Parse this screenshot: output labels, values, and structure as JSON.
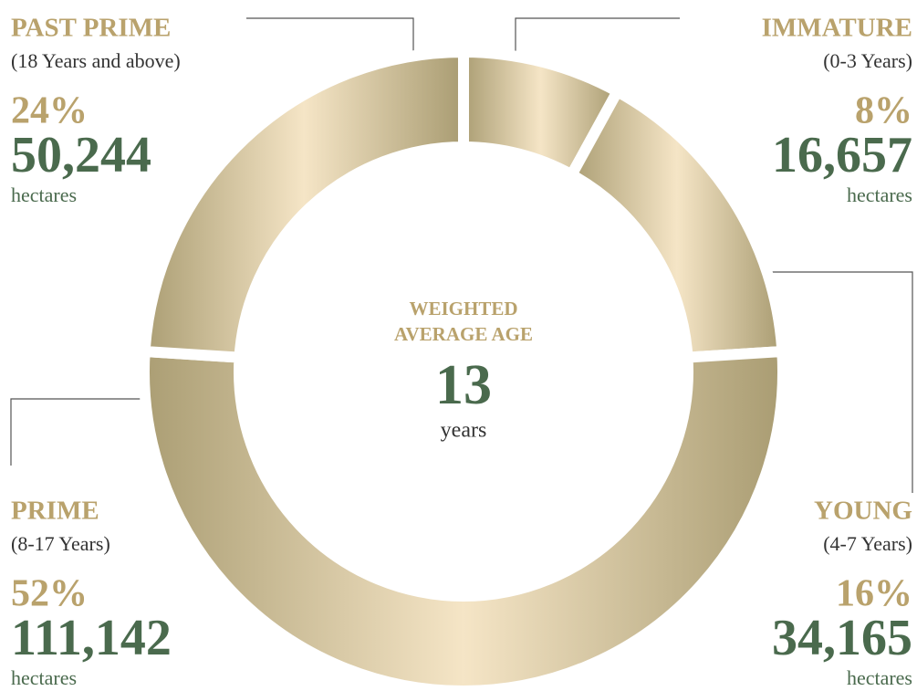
{
  "chart_data": {
    "type": "donut",
    "categories": [
      "IMMATURE",
      "YOUNG",
      "PRIME",
      "PAST PRIME"
    ],
    "subtitles": [
      "(0-3 Years)",
      "(4-7 Years)",
      "(8-17 Years)",
      "(18 Years and above)"
    ],
    "values": [
      8,
      16,
      52,
      24
    ],
    "value_labels": [
      "8%",
      "16%",
      "52%",
      "24%"
    ],
    "hectares": [
      16657,
      34165,
      111142,
      50244
    ],
    "hectares_labels": [
      "16,657",
      "34,165",
      "111,142",
      "50,244"
    ],
    "unit": "hectares",
    "center_title_lines": [
      "WEIGHTED",
      "AVERAGE AGE"
    ],
    "center_value": 13,
    "center_unit": "years",
    "colors": [
      "#ab9e74",
      "#f5e5c6",
      "#a99c72"
    ]
  }
}
